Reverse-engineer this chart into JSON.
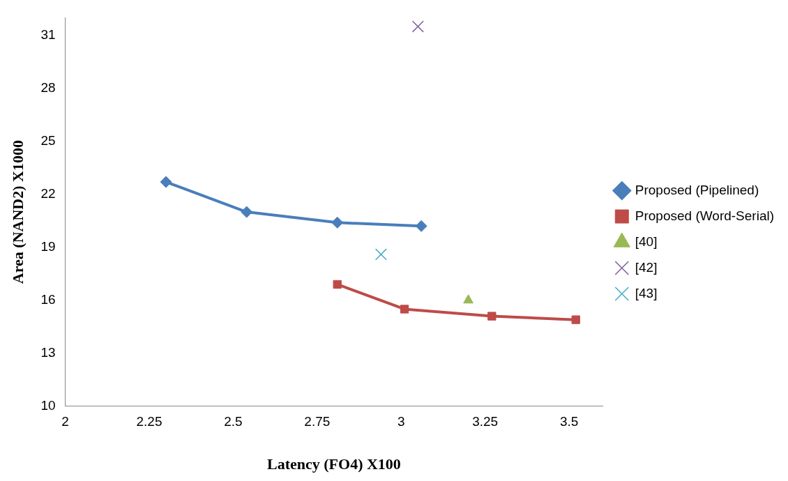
{
  "chart_data": {
    "type": "line",
    "xlabel": "Latency (FO4) X100",
    "ylabel": "Area (NAND2) X1000",
    "xlim": [
      2,
      3.6
    ],
    "xticks": [
      2,
      2.25,
      2.5,
      2.75,
      3,
      3.25,
      3.5
    ],
    "ylim": [
      10,
      32
    ],
    "yticks": [
      10,
      13,
      16,
      19,
      22,
      25,
      28,
      31
    ],
    "grid": false,
    "legend": "right",
    "line_style": "solid",
    "series": [
      {
        "name": "Proposed (Pipelined)",
        "marker": "diamond",
        "color": "#4a7ebb",
        "x": [
          2.3,
          2.54,
          2.81,
          3.06
        ],
        "values": [
          22.7,
          21.0,
          20.4,
          20.2
        ]
      },
      {
        "name": "Proposed (Word-Serial)",
        "marker": "square",
        "color": "#be4b48",
        "x": [
          2.81,
          3.01,
          3.27,
          3.52
        ],
        "values": [
          16.9,
          15.5,
          15.1,
          14.9
        ]
      },
      {
        "name": "[40]",
        "type": "scatter",
        "marker": "triangle",
        "color": "#98b954",
        "x": [
          3.2
        ],
        "values": [
          16.0
        ]
      },
      {
        "name": "[42]",
        "type": "scatter",
        "marker": "cross",
        "color": "#7d60a0",
        "x": [
          3.05
        ],
        "values": [
          31.5
        ]
      },
      {
        "name": "[43]",
        "type": "scatter",
        "marker": "cross",
        "color": "#46aac5",
        "x": [
          2.94
        ],
        "values": [
          18.6
        ]
      }
    ]
  }
}
